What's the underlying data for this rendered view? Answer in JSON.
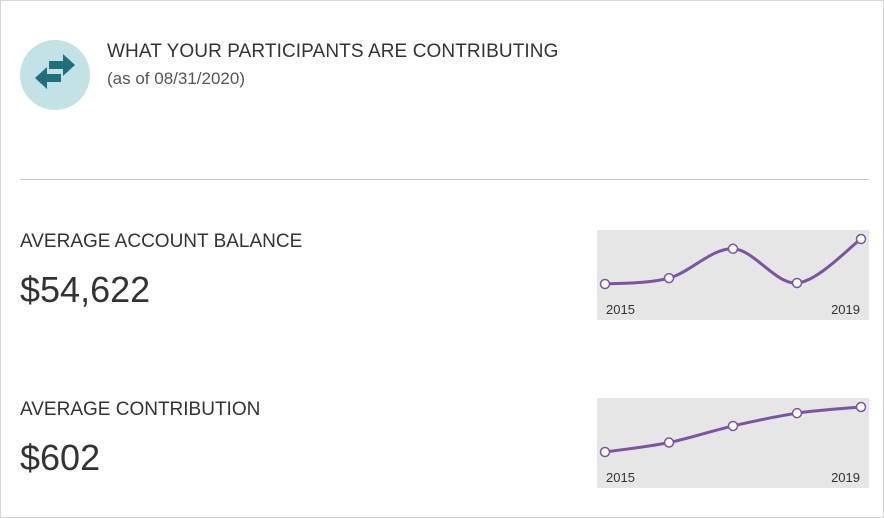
{
  "header": {
    "title": "WHAT YOUR PARTICIPANTS ARE CONTRIBUTING",
    "subtitle": "(as of 08/31/2020)",
    "icon": "transfer-arrows-icon",
    "icon_bg_color": "#c3e2e6",
    "icon_color": "#1f6f7d"
  },
  "metrics": [
    {
      "label": "AVERAGE ACCOUNT BALANCE",
      "value": "$54,622"
    },
    {
      "label": "AVERAGE CONTRIBUTION",
      "value": "$602"
    }
  ],
  "line_color": "#7b559d",
  "chart_data": [
    {
      "type": "line",
      "x": [
        2015,
        2016,
        2017,
        2018,
        2019
      ],
      "y": [
        0.08,
        0.2,
        0.8,
        0.1,
        1.0
      ],
      "x_tick_labels": [
        "2015",
        "2019"
      ],
      "grid": false
    },
    {
      "type": "line",
      "x": [
        2015,
        2016,
        2017,
        2018,
        2019
      ],
      "y": [
        0.0,
        0.2,
        0.55,
        0.82,
        0.95
      ],
      "x_tick_labels": [
        "2015",
        "2019"
      ],
      "grid": false
    }
  ]
}
